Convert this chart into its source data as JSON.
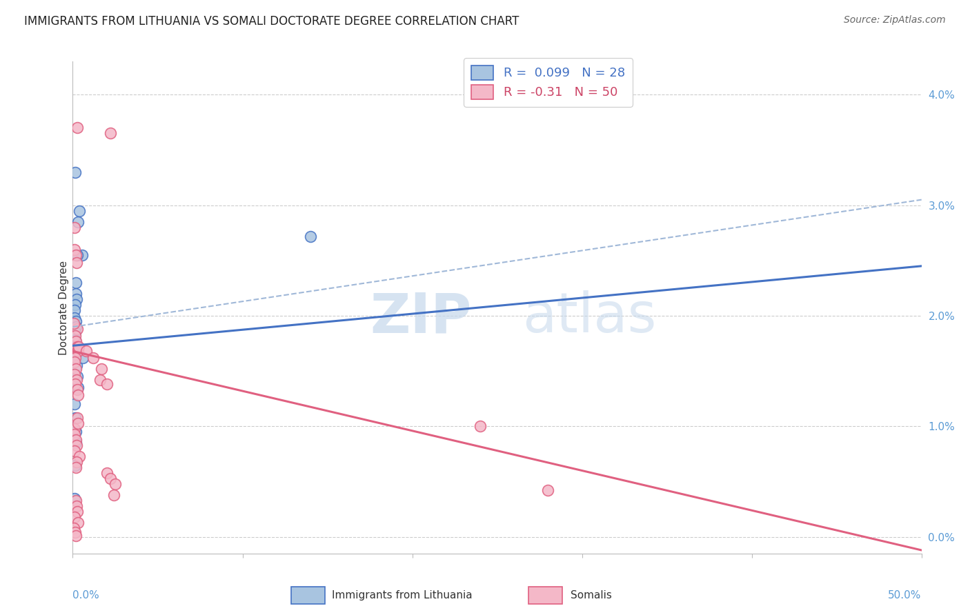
{
  "title": "IMMIGRANTS FROM LITHUANIA VS SOMALI DOCTORATE DEGREE CORRELATION CHART",
  "source": "Source: ZipAtlas.com",
  "ylabel": "Doctorate Degree",
  "right_yticks": [
    "0.0%",
    "1.0%",
    "2.0%",
    "3.0%",
    "4.0%"
  ],
  "right_ytick_vals": [
    0.0,
    1.0,
    2.0,
    3.0,
    4.0
  ],
  "x_min": 0.0,
  "x_max": 50.0,
  "y_min": -0.15,
  "y_max": 4.3,
  "blue_R": 0.099,
  "blue_N": 28,
  "pink_R": -0.31,
  "pink_N": 50,
  "legend_label_blue": "Immigrants from Lithuania",
  "legend_label_pink": "Somalis",
  "watermark_zip": "ZIP",
  "watermark_atlas": "atlas",
  "background_color": "#ffffff",
  "grid_color": "#cccccc",
  "blue_scatter_color": "#a8c4e0",
  "pink_scatter_color": "#f4b8c8",
  "blue_line_color": "#4472c4",
  "pink_line_color": "#e06080",
  "blue_dashed_color": "#a0b8d8",
  "title_fontsize": 12,
  "axis_label_fontsize": 11,
  "tick_fontsize": 11,
  "legend_fontsize": 13,
  "blue_line_x0": 0.0,
  "blue_line_y0": 1.73,
  "blue_line_x1": 50.0,
  "blue_line_y1": 2.45,
  "blue_dash_x0": 0.0,
  "blue_dash_y0": 1.9,
  "blue_dash_x1": 50.0,
  "blue_dash_y1": 3.05,
  "pink_line_x0": 0.0,
  "pink_line_y0": 1.68,
  "pink_line_x1": 50.0,
  "pink_line_y1": -0.12,
  "blue_x": [
    0.15,
    0.4,
    0.55,
    0.3,
    0.25,
    0.2,
    0.18,
    0.22,
    0.15,
    0.12,
    0.1,
    0.17,
    0.2,
    0.13,
    0.16,
    0.14,
    0.18,
    0.22,
    0.25,
    0.3,
    0.12,
    0.15,
    0.2,
    0.18,
    0.6,
    0.15,
    0.12,
    14.0
  ],
  "blue_y": [
    3.3,
    2.95,
    2.55,
    2.85,
    2.55,
    2.3,
    2.2,
    2.15,
    2.1,
    2.05,
    1.98,
    1.95,
    1.9,
    1.85,
    1.78,
    1.72,
    1.65,
    1.55,
    1.45,
    1.35,
    1.2,
    1.08,
    0.95,
    0.85,
    1.62,
    0.65,
    0.35,
    2.72
  ],
  "pink_x": [
    0.25,
    0.12,
    2.2,
    0.1,
    0.18,
    0.22,
    0.28,
    0.15,
    0.2,
    0.25,
    0.3,
    0.15,
    0.12,
    0.18,
    0.1,
    0.22,
    0.15,
    0.25,
    0.3,
    0.35,
    0.8,
    1.2,
    1.6,
    2.0,
    0.08,
    0.12,
    0.1,
    0.18,
    0.22,
    0.12,
    0.28,
    0.32,
    0.38,
    0.22,
    0.18,
    1.7,
    2.0,
    2.2,
    2.5,
    2.4,
    0.18,
    0.22,
    0.28,
    24.0,
    28.0,
    0.12,
    0.3,
    0.08,
    0.13,
    0.18
  ],
  "pink_y": [
    3.7,
    2.8,
    3.65,
    2.6,
    2.55,
    2.48,
    1.88,
    1.82,
    1.77,
    1.72,
    1.68,
    1.62,
    1.58,
    1.52,
    1.47,
    1.42,
    1.38,
    1.33,
    1.28,
    1.72,
    1.68,
    1.62,
    1.42,
    1.38,
    1.93,
    0.98,
    0.93,
    0.88,
    0.83,
    0.78,
    1.08,
    1.03,
    0.73,
    0.68,
    0.63,
    1.52,
    0.58,
    0.53,
    0.48,
    0.38,
    0.33,
    0.28,
    0.23,
    1.0,
    0.42,
    0.18,
    0.13,
    0.08,
    0.04,
    0.01
  ]
}
